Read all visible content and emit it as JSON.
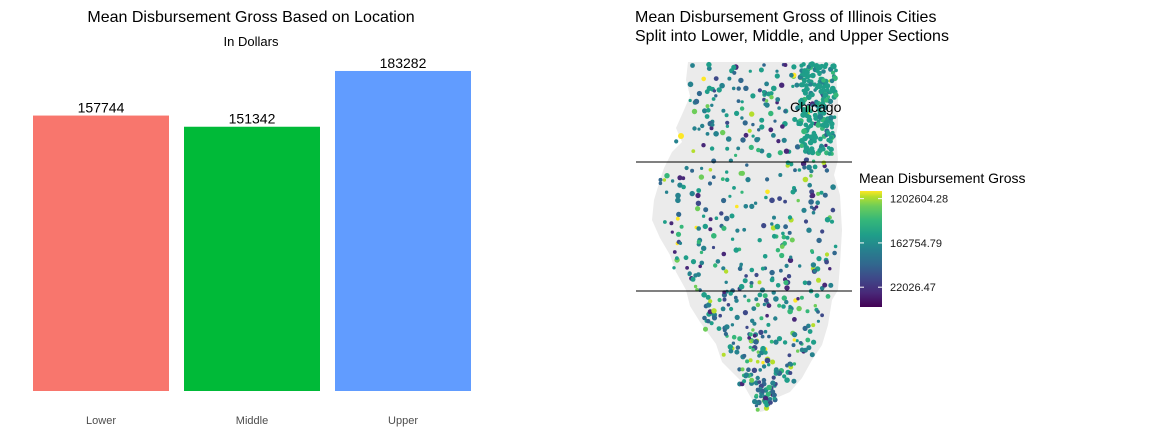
{
  "chart_data": [
    {
      "type": "bar",
      "title": "Mean Disbursement Gross Based on Location",
      "subtitle": "In Dollars",
      "categories": [
        "Lower",
        "Middle",
        "Upper"
      ],
      "values": [
        157744,
        151342,
        183282
      ],
      "value_labels": [
        "157744",
        "151342",
        "183282"
      ],
      "colors": [
        "#F8766D",
        "#00BA38",
        "#619CFF"
      ],
      "ylim": [
        0,
        193000
      ],
      "grid": false,
      "legend": "none"
    },
    {
      "type": "scatter",
      "subtitle": "map",
      "title_lines": [
        "Mean Disbursement Gross of Illinois Cities",
        "Split into Lower, Middle, and Upper Sections"
      ],
      "annotation": "Chicago",
      "legend": {
        "title": "Mean Disbursement Gross",
        "position": "right",
        "scale": "log",
        "ticks": [
          {
            "value": 1202604.28,
            "label": "1202604.28"
          },
          {
            "value": 162754.79,
            "label": "162754.79"
          },
          {
            "value": 22026.47,
            "label": "22026.47"
          }
        ],
        "range": [
          9000,
          1700000
        ]
      },
      "colormap": "viridis",
      "map_fill": "#ebebeb",
      "divider_lines": 2
    }
  ]
}
